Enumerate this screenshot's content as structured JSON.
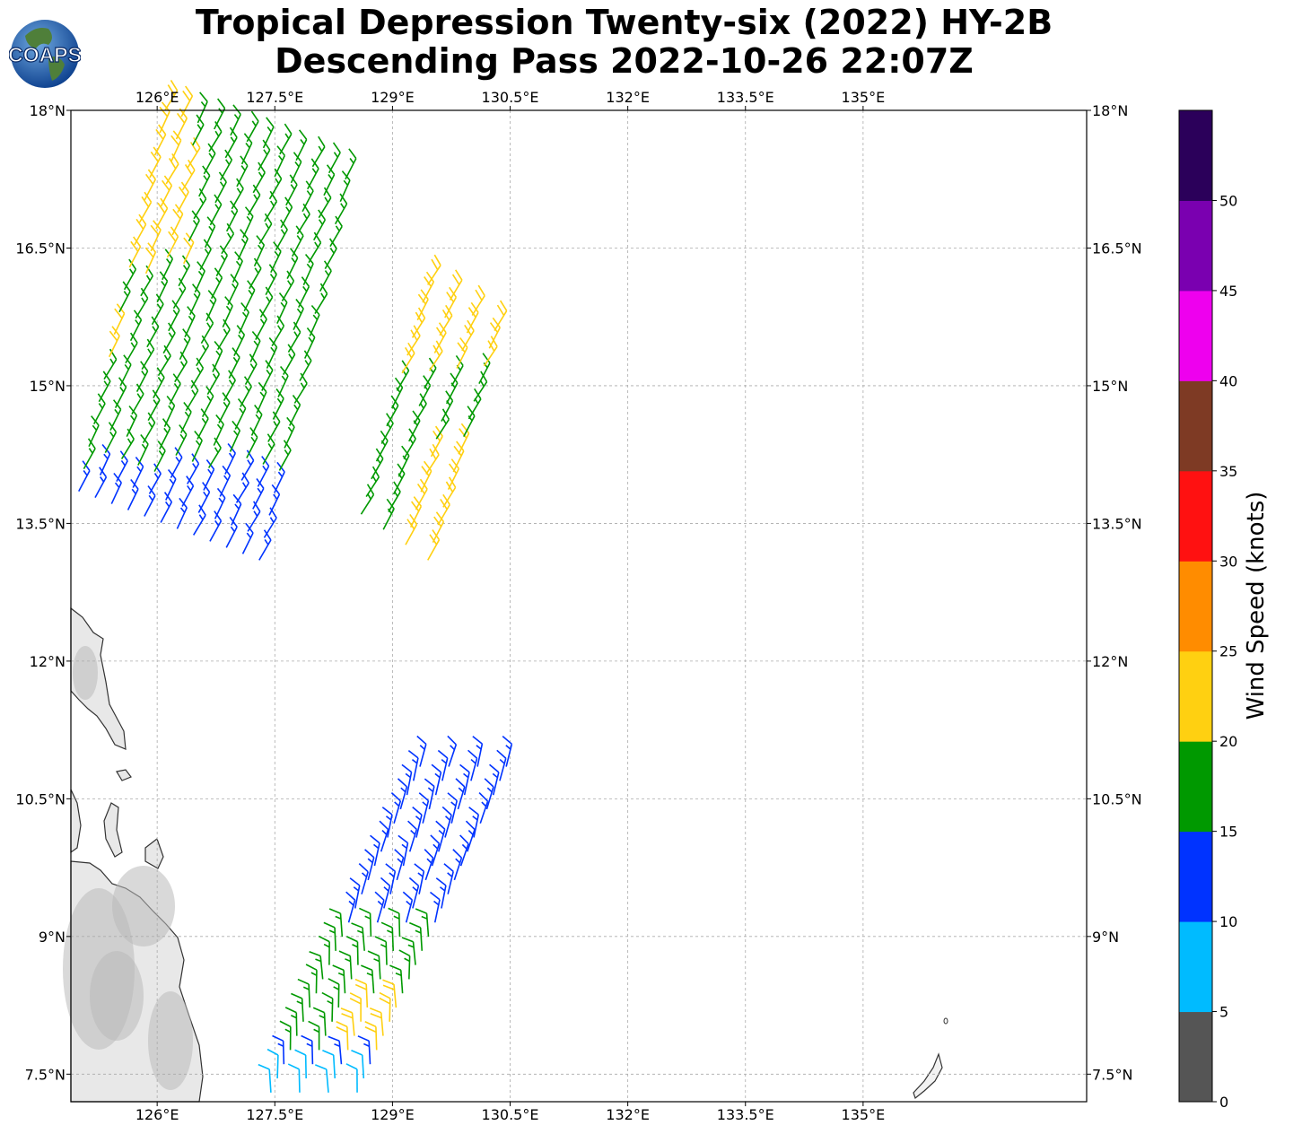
{
  "title": {
    "line1": "Tropical Depression Twenty-six (2022) HY-2B",
    "line2": "Descending Pass 2022-10-26 22:07Z"
  },
  "logo": {
    "text": "COAPS",
    "icon": "globe-icon"
  },
  "map": {
    "lon_range": [
      124.9,
      137.85
    ],
    "lat_range": [
      7.2,
      18.0
    ],
    "lon_ticks": [
      "126°E",
      "127.5°E",
      "129°E",
      "130.5°E",
      "132°E",
      "133.5°E",
      "135°E"
    ],
    "lon_values": [
      126,
      127.5,
      129,
      130.5,
      132,
      133.5,
      135
    ],
    "lat_ticks": [
      "18°N",
      "16.5°N",
      "15°N",
      "13.5°N",
      "12°N",
      "10.5°N",
      "9°N",
      "7.5°N"
    ],
    "lat_values": [
      18,
      16.5,
      15,
      13.5,
      12,
      10.5,
      9,
      7.5
    ],
    "grid": true,
    "land_color": "#e8e8e8",
    "coast_color": "#333333"
  },
  "colorbar": {
    "label": "Wind Speed (knots)",
    "ticks": [
      "0",
      "5",
      "10",
      "15",
      "20",
      "25",
      "30",
      "35",
      "40",
      "45",
      "50"
    ],
    "bins": [
      {
        "from": 0,
        "to": 5,
        "color": "#555555"
      },
      {
        "from": 5,
        "to": 10,
        "color": "#00bbff"
      },
      {
        "from": 10,
        "to": 15,
        "color": "#0033ff"
      },
      {
        "from": 15,
        "to": 20,
        "color": "#009900"
      },
      {
        "from": 20,
        "to": 25,
        "color": "#ffd011"
      },
      {
        "from": 25,
        "to": 30,
        "color": "#ff8c00"
      },
      {
        "from": 30,
        "to": 35,
        "color": "#ff1111"
      },
      {
        "from": 35,
        "to": 40,
        "color": "#7e3a24"
      },
      {
        "from": 40,
        "to": 45,
        "color": "#ee00ee"
      },
      {
        "from": 45,
        "to": 50,
        "color": "#7a00b0"
      },
      {
        "from": 50,
        "to": 55,
        "color": "#2b005a"
      }
    ]
  },
  "wind_swaths": [
    {
      "name": "northwest-swath",
      "lon0": 125.0,
      "lat0": 13.85,
      "lon1": 126.1,
      "lat1": 18.0,
      "cross_lon": 2.3,
      "cross_lat": 0.75,
      "along": 18,
      "across": 12
    },
    {
      "name": "central-swath",
      "lon0": 128.6,
      "lat0": 13.6,
      "lon1": 129.45,
      "lat1": 16.1,
      "cross_lon": 0.85,
      "cross_lat": 0.5,
      "along": 14,
      "across": 4
    },
    {
      "name": "south-swath",
      "lon0": 127.45,
      "lat0": 7.3,
      "lon1": 129.35,
      "lat1": 10.85,
      "cross_lon": 1.1,
      "cross_lat": 0.0,
      "along": 24,
      "across": 4
    }
  ]
}
